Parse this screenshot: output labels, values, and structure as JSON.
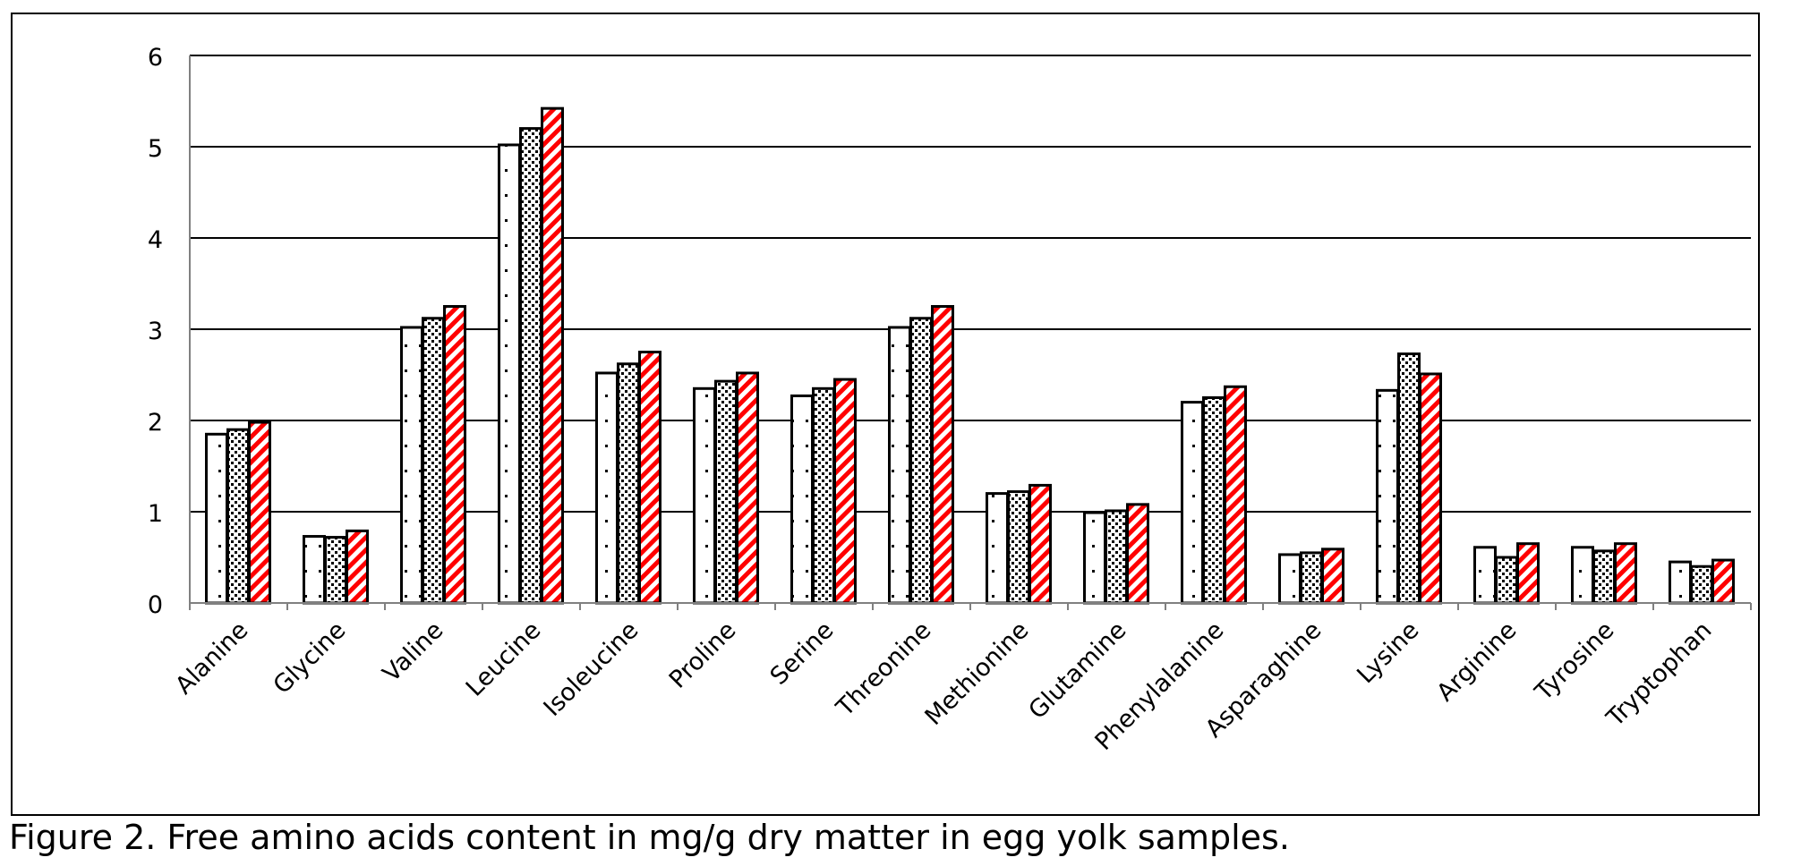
{
  "caption": "Figure 2. Free amino acids content in mg/g dry matter in egg yolk samples.",
  "chart_data": {
    "type": "bar",
    "categories": [
      "Alanine",
      "Glycine",
      "Valine",
      "Leucine",
      "Isoleucine",
      "Proline",
      "Serine",
      "Threonine",
      "Methionine",
      "Glutamine",
      "Phenylalanine",
      "Asparaghine",
      "Lysine",
      "Arginine",
      "Tyrosine",
      "Tryptophan"
    ],
    "series": [
      {
        "pattern": "sparse-dots",
        "values": [
          1.85,
          0.73,
          3.02,
          5.02,
          2.52,
          2.35,
          2.27,
          3.02,
          1.2,
          0.99,
          2.2,
          0.53,
          2.33,
          0.61,
          0.61,
          0.45
        ]
      },
      {
        "pattern": "dense-dots",
        "values": [
          1.9,
          0.72,
          3.12,
          5.2,
          2.62,
          2.43,
          2.35,
          3.12,
          1.22,
          1.01,
          2.25,
          0.55,
          2.73,
          0.5,
          0.57,
          0.4
        ]
      },
      {
        "pattern": "red-diagonal-stripes",
        "values": [
          1.98,
          0.79,
          3.25,
          5.42,
          2.75,
          2.52,
          2.45,
          3.25,
          1.29,
          1.08,
          2.37,
          0.59,
          2.51,
          0.65,
          0.65,
          0.47
        ]
      }
    ],
    "ylim": [
      0,
      6
    ],
    "yticks": [
      0,
      1,
      2,
      3,
      4,
      5,
      6
    ],
    "grid": true,
    "colors": {
      "stripe": "#ff0000",
      "border": "#000000",
      "fill": "#ffffff",
      "grid": "#000000"
    }
  }
}
